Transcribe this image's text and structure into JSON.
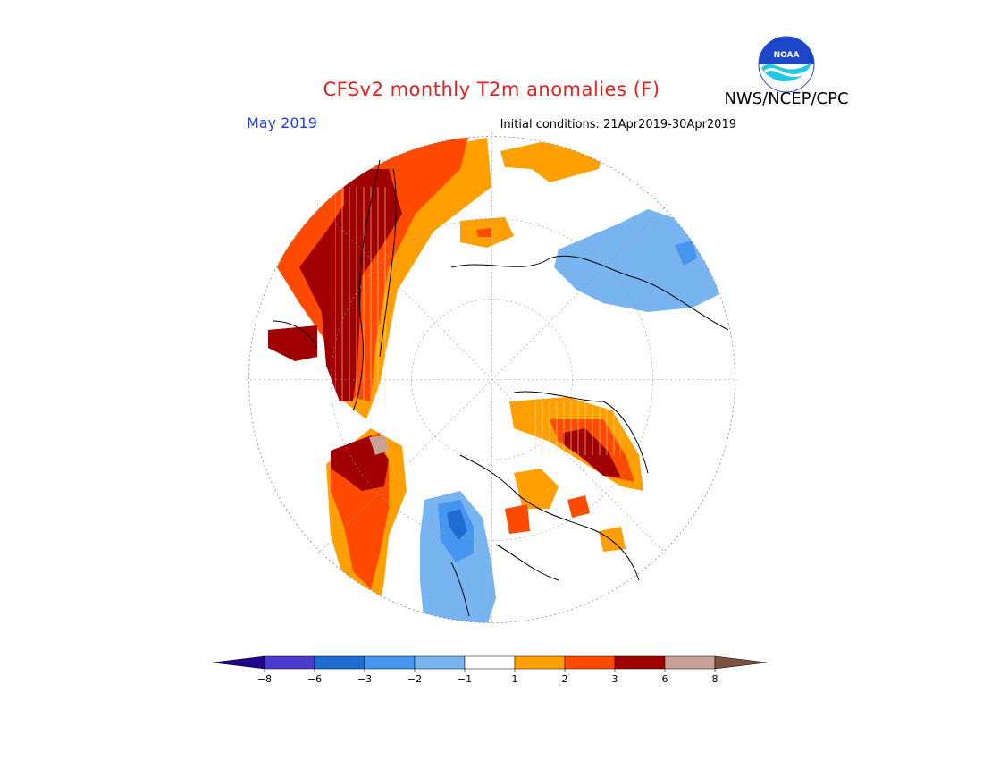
{
  "header": {
    "title": "CFSv2 monthly T2m anomalies (F)",
    "agency": "NWS/NCEP/CPC",
    "logo_text": "NOAA"
  },
  "map": {
    "month": "May 2019",
    "initial_conditions": "Initial conditions: 21Apr2019-30Apr2019",
    "projection": "north polar stereographic",
    "variable": "2 m temperature anomaly",
    "units": "F"
  },
  "legend": {
    "bins": [
      {
        "range": "< -8",
        "color": "#20008c"
      },
      {
        "range": "-8 to -6",
        "color": "#4a3ccc"
      },
      {
        "range": "-6 to -3",
        "color": "#1e6ed2"
      },
      {
        "range": "-3 to -2",
        "color": "#4696f0"
      },
      {
        "range": "-2 to -1",
        "color": "#78b4f0"
      },
      {
        "range": "-1 to 1",
        "color": "#ffffff"
      },
      {
        "range": "1 to 2",
        "color": "#ffa000"
      },
      {
        "range": "2 to 3",
        "color": "#ff4a00"
      },
      {
        "range": "3 to 6",
        "color": "#a00000"
      },
      {
        "range": "6 to 8",
        "color": "#c8a096"
      },
      {
        "range": "> 8",
        "color": "#7d5040"
      }
    ],
    "ticks": [
      "−8",
      "−6",
      "−3",
      "−2",
      "−1",
      "1",
      "2",
      "3",
      "6",
      "8"
    ]
  }
}
